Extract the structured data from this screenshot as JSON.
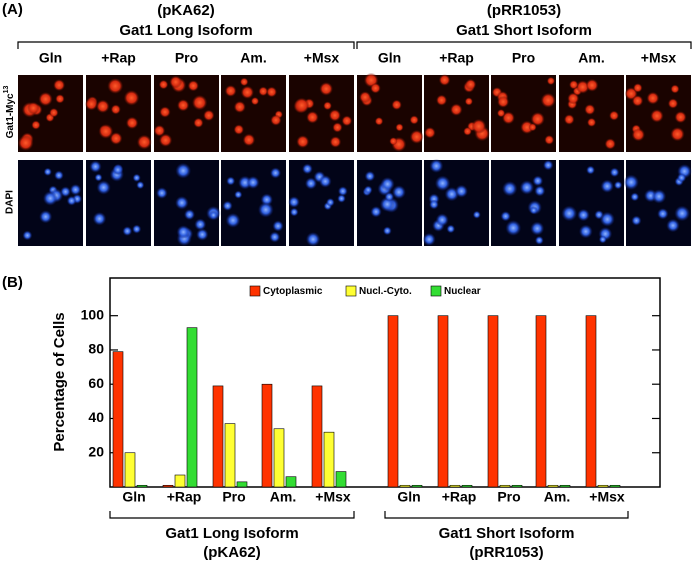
{
  "panel_a": {
    "label": "(A)",
    "groups": [
      {
        "plasmid": "(pKA62)",
        "title": "Gat1 Long Isoform"
      },
      {
        "plasmid": "(pRR1053)",
        "title": "Gat1 Short Isoform"
      }
    ],
    "columns": [
      "Gln",
      "+Rap",
      "Pro",
      "Am.",
      "+Msx",
      "Gln",
      "+Rap",
      "Pro",
      "Am.",
      "+Msx"
    ],
    "rows": [
      {
        "label": "Gat1-Myc",
        "superscript": "13"
      },
      {
        "label": "DAPI"
      }
    ]
  },
  "chart_data": {
    "type": "bar",
    "panel_label": "(B)",
    "y_label": "Percentage of Cells",
    "categories": [
      "Gln",
      "+Rap",
      "Pro",
      "Am.",
      "+Msx",
      "Gln",
      "+Rap",
      "Pro",
      "Am.",
      "+Msx"
    ],
    "groups": [
      {
        "label": "Gat1 Long Isoform",
        "sublabel": "(pKA62)"
      },
      {
        "label": "Gat1 Short Isoform",
        "sublabel": "(pRR1053)"
      }
    ],
    "series": [
      {
        "name": "Cytoplasmic",
        "color": "#ff3300",
        "values": [
          79,
          1,
          59,
          60,
          59,
          100,
          100,
          100,
          100,
          100
        ]
      },
      {
        "name": "Nucl.-Cyto.",
        "color": "#ffff33",
        "values": [
          20,
          7,
          37,
          34,
          32,
          1,
          1,
          1,
          1,
          1
        ]
      },
      {
        "name": "Nuclear",
        "color": "#33dd33",
        "values": [
          1,
          93,
          3,
          6,
          9,
          1,
          1,
          1,
          1,
          1
        ]
      }
    ],
    "ylim": [
      0,
      122
    ],
    "yticks": [
      20,
      40,
      60,
      80,
      100
    ],
    "legend": "top"
  }
}
